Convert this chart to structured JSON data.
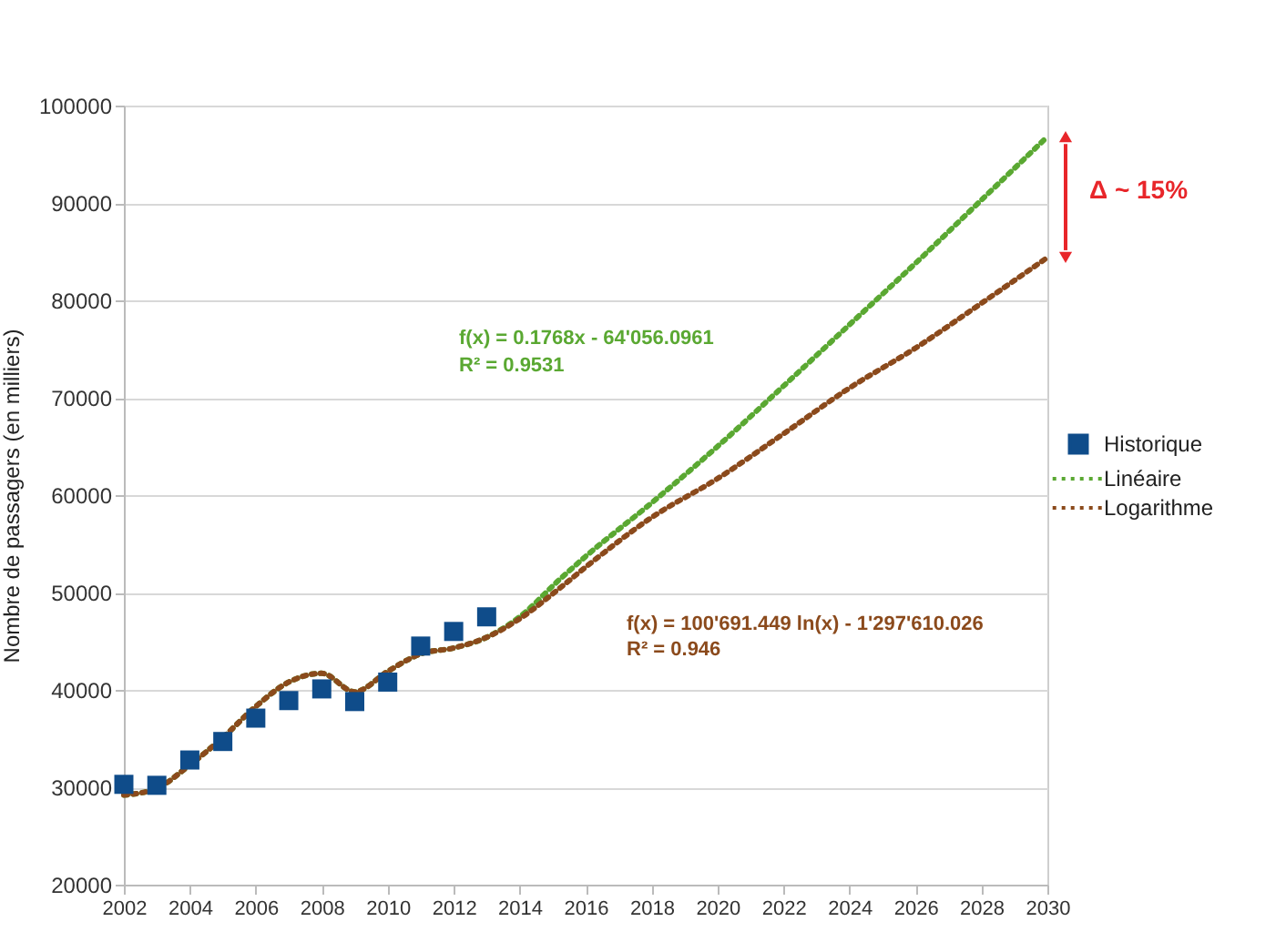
{
  "chart_data": {
    "type": "scatter",
    "ylabel": "Nombre de passagers (en milliers)",
    "xlim": [
      2002,
      2030
    ],
    "xticks": [
      2002,
      2004,
      2006,
      2008,
      2010,
      2012,
      2014,
      2016,
      2018,
      2020,
      2022,
      2024,
      2026,
      2028,
      2030
    ],
    "ylim": [
      20000,
      100000
    ],
    "yticks": [
      20000,
      30000,
      40000,
      50000,
      60000,
      70000,
      80000,
      90000,
      100000
    ],
    "grid": "y",
    "legend": "right",
    "series": [
      {
        "name": "Historique",
        "marker": "square",
        "color": "#0f4c8a",
        "x": [
          2002,
          2003,
          2004,
          2005,
          2006,
          2007,
          2008,
          2009,
          2010,
          2011,
          2012,
          2013
        ],
        "values": [
          30300,
          30200,
          32800,
          34700,
          37100,
          38900,
          40100,
          38800,
          40800,
          44500,
          46000,
          47500
        ]
      },
      {
        "name": "Linéaire",
        "type": "line",
        "line_style": "dotted",
        "color": "#5aa832",
        "x": [
          2002,
          2003,
          2004,
          2005,
          2006,
          2007,
          2008,
          2009,
          2010,
          2011,
          2012,
          2013,
          2014,
          2015.2,
          2016,
          2018,
          2020,
          2022,
          2024,
          2026,
          2028,
          2030
        ],
        "values": [
          29200,
          29900,
          32300,
          35100,
          38300,
          40800,
          41700,
          39800,
          41900,
          43700,
          44300,
          45400,
          47500,
          51300,
          53700,
          59200,
          65000,
          71200,
          77500,
          83800,
          90300,
          96800
        ]
      },
      {
        "name": "Logarithme",
        "type": "line",
        "line_style": "dotted",
        "color": "#8b4a1c",
        "x": [
          2002,
          2003,
          2004,
          2005,
          2006,
          2007,
          2008,
          2009,
          2010,
          2011,
          2012,
          2013,
          2014,
          2015.2,
          2016,
          2018,
          2020,
          2022,
          2024,
          2026,
          2028,
          2030
        ],
        "values": [
          29200,
          29900,
          32300,
          35100,
          38300,
          40800,
          41700,
          39800,
          41900,
          43700,
          44300,
          45400,
          47300,
          50400,
          52600,
          57700,
          61700,
          66300,
          71000,
          75100,
          79700,
          84400
        ]
      }
    ],
    "annotations": [
      "f(x) = 0.1768x - 64'056.0961",
      "R² = 0.9531",
      "f(x) = 100'691.449 ln(x) - 1'297'610.026",
      "R² = 0.946",
      "Δ ~ 15%"
    ]
  }
}
